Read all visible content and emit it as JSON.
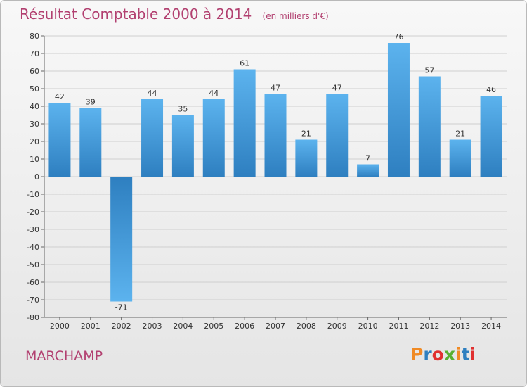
{
  "chart_data": {
    "type": "bar",
    "title": "Résultat Comptable 2000 à 2014",
    "unit": "(en milliers d'€)",
    "categories": [
      "2000",
      "2001",
      "2002",
      "2003",
      "2004",
      "2005",
      "2006",
      "2007",
      "2008",
      "2009",
      "2010",
      "2011",
      "2012",
      "2013",
      "2014"
    ],
    "values": [
      42,
      39,
      -71,
      44,
      35,
      44,
      61,
      47,
      21,
      47,
      7,
      76,
      57,
      21,
      46
    ],
    "ylim": [
      -80,
      80
    ],
    "ytick_step": 10,
    "grid": true,
    "xlabel": "",
    "ylabel": "",
    "bar_color_light": "#5cb3ee",
    "bar_color_dark": "#2e7fc0"
  },
  "footer": {
    "commune": "MARCHAMP",
    "brand": "Proxiti",
    "brand_colors": [
      "#f08a24",
      "#2e7fc0",
      "#e03030",
      "#58b030",
      "#f08a24",
      "#2e7fc0",
      "#e03030"
    ]
  }
}
